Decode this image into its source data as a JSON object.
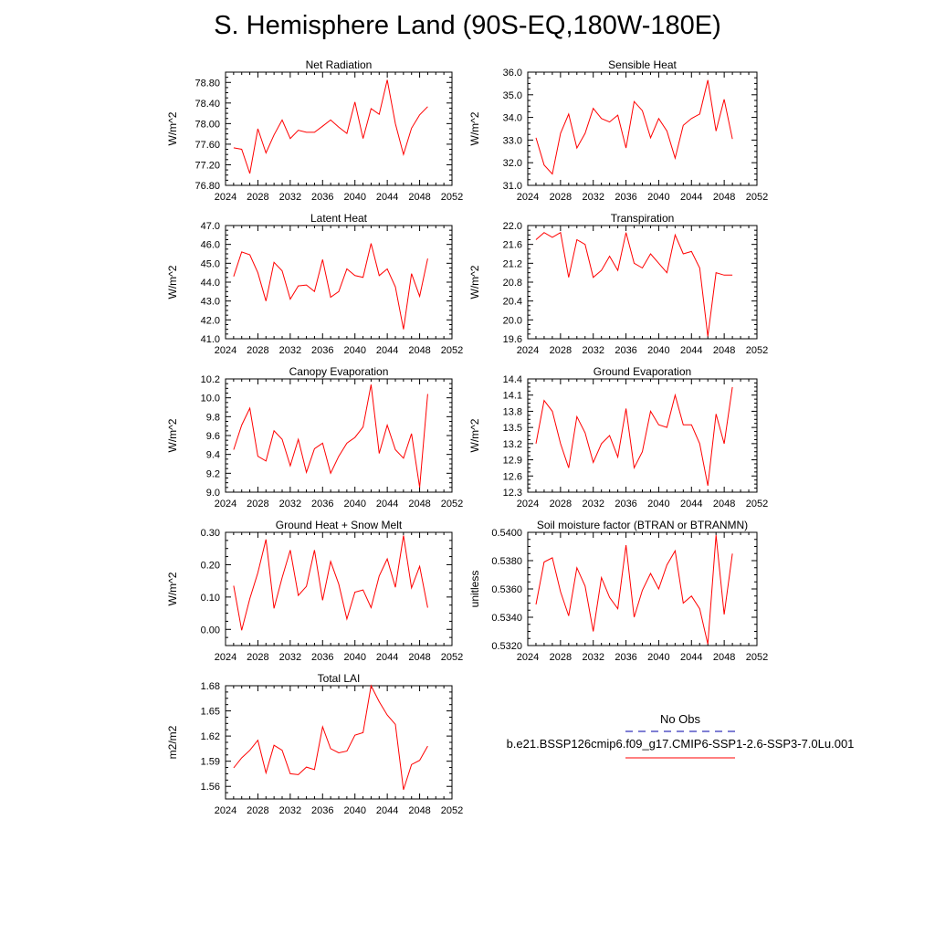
{
  "figure_title": "S. Hemisphere Land (90S-EQ,180W-180E)",
  "legend": {
    "no_obs": "No Obs",
    "case_name": "b.e21.BSSP126cmip6.f09_g17.CMIP6-SSP1-2.6-SSP3-7.0Lu.001",
    "obs_color": "#3333bb",
    "case_color": "#ff0000"
  },
  "chart_data": [
    {
      "type": "line",
      "title": "Net Radiation",
      "ylabel": "W/m^2",
      "xlim": [
        2024,
        2052
      ],
      "xticks": [
        "2024",
        "2028",
        "2032",
        "2036",
        "2040",
        "2044",
        "2048",
        "2052"
      ],
      "ylim": [
        76.8,
        79.0
      ],
      "yticks": [
        "76.80",
        "77.20",
        "77.60",
        "78.00",
        "78.40",
        "78.80"
      ],
      "series": [
        {
          "color": "#ff0000",
          "x": [
            2025,
            2026,
            2027,
            2028,
            2029,
            2030,
            2031,
            2032,
            2033,
            2034,
            2035,
            2036,
            2037,
            2038,
            2039,
            2040,
            2041,
            2042,
            2043,
            2044,
            2045,
            2046,
            2047,
            2048,
            2049
          ],
          "values": [
            77.53,
            77.5,
            77.03,
            77.9,
            77.43,
            77.78,
            78.07,
            77.71,
            77.87,
            77.83,
            77.83,
            77.95,
            78.07,
            77.93,
            77.81,
            78.42,
            77.71,
            78.29,
            78.18,
            78.85,
            78.0,
            77.4,
            77.91,
            78.17,
            78.33
          ]
        }
      ]
    },
    {
      "type": "line",
      "title": "Sensible Heat",
      "ylabel": "W/m^2",
      "xlim": [
        2024,
        2052
      ],
      "xticks": [
        "2024",
        "2028",
        "2032",
        "2036",
        "2040",
        "2044",
        "2048",
        "2052"
      ],
      "ylim": [
        31.0,
        36.0
      ],
      "yticks": [
        "31.0",
        "32.0",
        "33.0",
        "34.0",
        "35.0",
        "36.0"
      ],
      "series": [
        {
          "color": "#ff0000",
          "x": [
            2025,
            2026,
            2027,
            2028,
            2029,
            2030,
            2031,
            2032,
            2033,
            2034,
            2035,
            2036,
            2037,
            2038,
            2039,
            2040,
            2041,
            2042,
            2043,
            2044,
            2045,
            2046,
            2047,
            2048,
            2049
          ],
          "values": [
            33.1,
            31.9,
            31.5,
            33.3,
            34.15,
            32.65,
            33.3,
            34.4,
            33.95,
            33.8,
            34.1,
            32.65,
            34.7,
            34.3,
            33.1,
            33.95,
            33.4,
            32.2,
            33.65,
            33.95,
            34.15,
            35.65,
            33.4,
            34.8,
            33.05
          ]
        }
      ]
    },
    {
      "type": "line",
      "title": "Latent Heat",
      "ylabel": "W/m^2",
      "xlim": [
        2024,
        2052
      ],
      "xticks": [
        "2024",
        "2028",
        "2032",
        "2036",
        "2040",
        "2044",
        "2048",
        "2052"
      ],
      "ylim": [
        41.0,
        47.0
      ],
      "yticks": [
        "41.0",
        "42.0",
        "43.0",
        "44.0",
        "45.0",
        "46.0",
        "47.0"
      ],
      "series": [
        {
          "color": "#ff0000",
          "x": [
            2025,
            2026,
            2027,
            2028,
            2029,
            2030,
            2031,
            2032,
            2033,
            2034,
            2035,
            2036,
            2037,
            2038,
            2039,
            2040,
            2041,
            2042,
            2043,
            2044,
            2045,
            2046,
            2047,
            2048,
            2049
          ],
          "values": [
            44.3,
            45.6,
            45.45,
            44.5,
            43.0,
            45.05,
            44.6,
            43.1,
            43.8,
            43.85,
            43.5,
            45.2,
            43.2,
            43.5,
            44.7,
            44.35,
            44.25,
            46.05,
            44.35,
            44.7,
            43.75,
            41.5,
            44.45,
            43.25,
            45.25
          ]
        }
      ]
    },
    {
      "type": "line",
      "title": "Transpiration",
      "ylabel": "W/m^2",
      "xlim": [
        2024,
        2052
      ],
      "xticks": [
        "2024",
        "2028",
        "2032",
        "2036",
        "2040",
        "2044",
        "2048",
        "2052"
      ],
      "ylim": [
        19.6,
        22.0
      ],
      "yticks": [
        "19.6",
        "20.0",
        "20.4",
        "20.8",
        "21.2",
        "21.6",
        "22.0"
      ],
      "series": [
        {
          "color": "#ff0000",
          "x": [
            2025,
            2026,
            2027,
            2028,
            2029,
            2030,
            2031,
            2032,
            2033,
            2034,
            2035,
            2036,
            2037,
            2038,
            2039,
            2040,
            2041,
            2042,
            2043,
            2044,
            2045,
            2046,
            2047,
            2048,
            2049
          ],
          "values": [
            21.7,
            21.85,
            21.75,
            21.85,
            20.9,
            21.7,
            21.6,
            20.9,
            21.05,
            21.35,
            21.05,
            21.85,
            21.2,
            21.1,
            21.4,
            21.2,
            21.0,
            21.8,
            21.4,
            21.45,
            21.1,
            19.65,
            21.0,
            20.95,
            20.95
          ]
        }
      ]
    },
    {
      "type": "line",
      "title": "Canopy Evaporation",
      "ylabel": "W/m^2",
      "xlim": [
        2024,
        2052
      ],
      "xticks": [
        "2024",
        "2028",
        "2032",
        "2036",
        "2040",
        "2044",
        "2048",
        "2052"
      ],
      "ylim": [
        9.0,
        10.2
      ],
      "yticks": [
        "9.0",
        "9.2",
        "9.4",
        "9.6",
        "9.8",
        "10.0",
        "10.2"
      ],
      "series": [
        {
          "color": "#ff0000",
          "x": [
            2025,
            2026,
            2027,
            2028,
            2029,
            2030,
            2031,
            2032,
            2033,
            2034,
            2035,
            2036,
            2037,
            2038,
            2039,
            2040,
            2041,
            2042,
            2043,
            2044,
            2045,
            2046,
            2047,
            2048,
            2049
          ],
          "values": [
            9.45,
            9.71,
            9.89,
            9.38,
            9.33,
            9.65,
            9.56,
            9.28,
            9.56,
            9.21,
            9.46,
            9.52,
            9.2,
            9.38,
            9.52,
            9.58,
            9.69,
            10.14,
            9.41,
            9.71,
            9.45,
            9.36,
            9.62,
            9.05,
            10.04
          ]
        }
      ]
    },
    {
      "type": "line",
      "title": "Ground Evaporation",
      "ylabel": "W/m^2",
      "xlim": [
        2024,
        2052
      ],
      "xticks": [
        "2024",
        "2028",
        "2032",
        "2036",
        "2040",
        "2044",
        "2048",
        "2052"
      ],
      "ylim": [
        12.3,
        14.4
      ],
      "yticks": [
        "12.3",
        "12.6",
        "12.9",
        "13.2",
        "13.5",
        "13.8",
        "14.1",
        "14.4"
      ],
      "series": [
        {
          "color": "#ff0000",
          "x": [
            2025,
            2026,
            2027,
            2028,
            2029,
            2030,
            2031,
            2032,
            2033,
            2034,
            2035,
            2036,
            2037,
            2038,
            2039,
            2040,
            2041,
            2042,
            2043,
            2044,
            2045,
            2046,
            2047,
            2048,
            2049
          ],
          "values": [
            13.2,
            14.0,
            13.8,
            13.2,
            12.75,
            13.7,
            13.4,
            12.85,
            13.2,
            13.35,
            12.95,
            13.85,
            12.75,
            13.05,
            13.8,
            13.55,
            13.5,
            14.1,
            13.55,
            13.55,
            13.2,
            12.42,
            13.75,
            13.2,
            14.25
          ]
        }
      ]
    },
    {
      "type": "line",
      "title": "Ground Heat + Snow Melt",
      "ylabel": "W/m^2",
      "xlim": [
        2024,
        2052
      ],
      "xticks": [
        "2024",
        "2028",
        "2032",
        "2036",
        "2040",
        "2044",
        "2048",
        "2052"
      ],
      "ylim": [
        -0.05,
        0.3
      ],
      "yticks": [
        "0.00",
        "0.10",
        "0.20",
        "0.30"
      ],
      "series": [
        {
          "color": "#ff0000",
          "x": [
            2025,
            2026,
            2027,
            2028,
            2029,
            2030,
            2031,
            2032,
            2033,
            2034,
            2035,
            2036,
            2037,
            2038,
            2039,
            2040,
            2041,
            2042,
            2043,
            2044,
            2045,
            2046,
            2047,
            2048,
            2049
          ],
          "values": [
            0.135,
            -0.003,
            0.095,
            0.175,
            0.278,
            0.065,
            0.16,
            0.245,
            0.105,
            0.133,
            0.245,
            0.09,
            0.21,
            0.14,
            0.032,
            0.115,
            0.122,
            0.067,
            0.165,
            0.218,
            0.13,
            0.29,
            0.128,
            0.195,
            0.067
          ]
        }
      ]
    },
    {
      "type": "line",
      "title": "Soil moisture factor (BTRAN or BTRANMN)",
      "ylabel": "unitless",
      "xlim": [
        2024,
        2052
      ],
      "xticks": [
        "2024",
        "2028",
        "2032",
        "2036",
        "2040",
        "2044",
        "2048",
        "2052"
      ],
      "ylim": [
        0.532,
        0.54
      ],
      "yticks": [
        "0.5320",
        "0.5340",
        "0.5360",
        "0.5380",
        "0.5400"
      ],
      "series": [
        {
          "color": "#ff0000",
          "x": [
            2025,
            2026,
            2027,
            2028,
            2029,
            2030,
            2031,
            2032,
            2033,
            2034,
            2035,
            2036,
            2037,
            2038,
            2039,
            2040,
            2041,
            2042,
            2043,
            2044,
            2045,
            2046,
            2047,
            2048,
            2049
          ],
          "values": [
            0.5349,
            0.5379,
            0.5382,
            0.5358,
            0.5341,
            0.5375,
            0.5362,
            0.533,
            0.5368,
            0.5354,
            0.5346,
            0.5391,
            0.534,
            0.5359,
            0.5371,
            0.536,
            0.5377,
            0.5387,
            0.535,
            0.5355,
            0.5346,
            0.5321,
            0.5398,
            0.5342,
            0.5385
          ]
        }
      ]
    },
    {
      "type": "line",
      "title": "Total LAI",
      "ylabel": "m2/m2",
      "xlim": [
        2024,
        2052
      ],
      "xticks": [
        "2024",
        "2028",
        "2032",
        "2036",
        "2040",
        "2044",
        "2048",
        "2052"
      ],
      "ylim": [
        1.545,
        1.68
      ],
      "yticks": [
        "1.56",
        "1.59",
        "1.62",
        "1.65",
        "1.68"
      ],
      "series": [
        {
          "color": "#ff0000",
          "x": [
            2025,
            2026,
            2027,
            2028,
            2029,
            2030,
            2031,
            2032,
            2033,
            2034,
            2035,
            2036,
            2037,
            2038,
            2039,
            2040,
            2041,
            2042,
            2043,
            2044,
            2045,
            2046,
            2047,
            2048,
            2049
          ],
          "values": [
            1.582,
            1.594,
            1.603,
            1.615,
            1.576,
            1.609,
            1.603,
            1.575,
            1.574,
            1.583,
            1.58,
            1.631,
            1.605,
            1.6,
            1.602,
            1.621,
            1.624,
            1.68,
            1.661,
            1.645,
            1.634,
            1.556,
            1.586,
            1.591,
            1.608
          ]
        }
      ]
    }
  ]
}
